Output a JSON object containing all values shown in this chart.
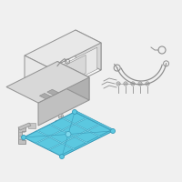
{
  "bg_color": "#f0f0f0",
  "line_color": "#909090",
  "line_color_dark": "#707070",
  "tray_fill": "#5bc8e0",
  "tray_edge": "#3a9ab8",
  "tray_inner": "#7dd8ec",
  "battery_top": "#d8d8d8",
  "battery_side": "#c0c0c0",
  "battery_right": "#b0b0b0",
  "box_face": "#f8f8f8",
  "box_top": "#e8e8e8",
  "box_right": "#d8d8d8",
  "hardware_fill": "#c8c8c8",
  "bracket_fill": "#c0c0c0",
  "wire_color": "#909090"
}
